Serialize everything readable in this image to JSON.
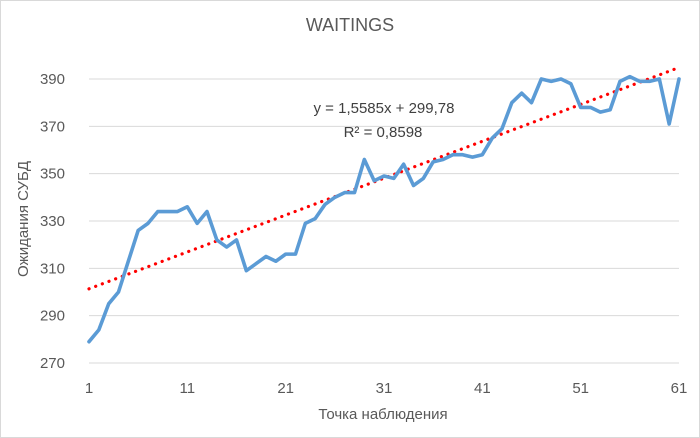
{
  "chart_data": {
    "type": "line",
    "title": "WAITINGS",
    "xlabel": "Точка наблюдения",
    "ylabel": "Ожидания СУБД",
    "xlim": [
      1,
      61
    ],
    "ylim": [
      270,
      390
    ],
    "x_ticks": [
      "1",
      "11",
      "21",
      "31",
      "41",
      "51",
      "61"
    ],
    "y_ticks": [
      "270",
      "290",
      "310",
      "330",
      "350",
      "370",
      "390"
    ],
    "grid": "horizontal",
    "legend": "none",
    "series": [
      {
        "color": "#5b9bd5",
        "x": [
          1,
          2,
          3,
          4,
          5,
          6,
          7,
          8,
          9,
          10,
          11,
          12,
          13,
          14,
          15,
          16,
          17,
          18,
          19,
          20,
          21,
          22,
          23,
          24,
          25,
          26,
          27,
          28,
          29,
          30,
          31,
          32,
          33,
          34,
          35,
          36,
          37,
          38,
          39,
          40,
          41,
          42,
          43,
          44,
          45,
          46,
          47,
          48,
          49,
          50,
          51,
          52,
          53,
          54,
          55,
          56,
          57,
          58,
          59,
          60,
          61
        ],
        "values": [
          279,
          284,
          295,
          300,
          313,
          326,
          329,
          334,
          334,
          334,
          336,
          329,
          334,
          322,
          319,
          322,
          309,
          312,
          315,
          313,
          316,
          316,
          329,
          331,
          337,
          340,
          342,
          342,
          356,
          347,
          349,
          348,
          354,
          345,
          348,
          355,
          356,
          358,
          358,
          357,
          358,
          365,
          369,
          380,
          384,
          380,
          390,
          389,
          390,
          388,
          378,
          378,
          376,
          377,
          389,
          391,
          389,
          389,
          390,
          371,
          390
        ]
      }
    ],
    "trendline": {
      "type": "linear",
      "color": "#ff0000",
      "style": "dotted",
      "slope": 1.5585,
      "intercept": 299.78,
      "equation": "y = 1,5585x + 299,78",
      "r_squared": "R² = 0,8598"
    }
  }
}
